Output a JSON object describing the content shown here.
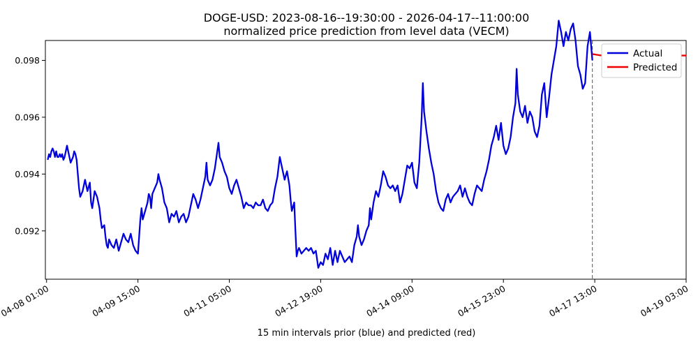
{
  "chart_data": {
    "type": "line",
    "title": "DOGE-USD: 2023-08-16--19:30:00 - 2026-04-17--11:00:00",
    "subtitle": "normalized price prediction from level data (VECM)",
    "xlabel": "15 min intervals prior (blue) and predicted (red)",
    "ylabel": "",
    "x_ticks": [
      {
        "label": "04-08 01:00",
        "t": 0
      },
      {
        "label": "04-09 15:00",
        "t": 38
      },
      {
        "label": "04-11 05:00",
        "t": 76
      },
      {
        "label": "04-12 19:00",
        "t": 114
      },
      {
        "label": "04-14 09:00",
        "t": 152
      },
      {
        "label": "04-15 23:00",
        "t": 190
      },
      {
        "label": "04-17 13:00",
        "t": 228
      },
      {
        "label": "04-19 03:00",
        "t": 266
      }
    ],
    "x_unit": "hours since 04-08 01:00",
    "xlim": [
      -0.5,
      266
    ],
    "ylim": [
      0.9903,
      0.0987
    ],
    "y_ticks": [
      0.092,
      0.094,
      0.096,
      0.098
    ],
    "forecast_start_t": 227,
    "grid": false,
    "legend_position": "top-right",
    "series": [
      {
        "name": "Actual",
        "color": "#0000dd",
        "points": [
          [
            0.5,
            0.0945
          ],
          [
            1,
            0.0947
          ],
          [
            1.5,
            0.0946
          ],
          [
            2,
            0.0948
          ],
          [
            2.5,
            0.0949
          ],
          [
            3,
            0.0948
          ],
          [
            3.5,
            0.0946
          ],
          [
            4,
            0.0948
          ],
          [
            4.5,
            0.0946
          ],
          [
            5,
            0.0946
          ],
          [
            5.5,
            0.0947
          ],
          [
            6,
            0.0946
          ],
          [
            6.5,
            0.0947
          ],
          [
            7,
            0.0945
          ],
          [
            7.5,
            0.0946
          ],
          [
            8,
            0.0948
          ],
          [
            8.5,
            0.095
          ],
          [
            9,
            0.0948
          ],
          [
            9.5,
            0.0946
          ],
          [
            10,
            0.0944
          ],
          [
            10.5,
            0.0945
          ],
          [
            11,
            0.0946
          ],
          [
            11.5,
            0.0948
          ],
          [
            12,
            0.0947
          ],
          [
            12.5,
            0.0945
          ],
          [
            13,
            0.094
          ],
          [
            13.5,
            0.0935
          ],
          [
            14,
            0.0932
          ],
          [
            15,
            0.0934
          ],
          [
            16,
            0.0938
          ],
          [
            17,
            0.0934
          ],
          [
            18,
            0.0937
          ],
          [
            18.5,
            0.093
          ],
          [
            19,
            0.0928
          ],
          [
            20,
            0.0934
          ],
          [
            21,
            0.0932
          ],
          [
            22,
            0.0928
          ],
          [
            22.5,
            0.0924
          ],
          [
            23,
            0.0921
          ],
          [
            24,
            0.0922
          ],
          [
            24.5,
            0.0918
          ],
          [
            25,
            0.0915
          ],
          [
            25.5,
            0.0914
          ],
          [
            26,
            0.0917
          ],
          [
            27,
            0.0915
          ],
          [
            28,
            0.0914
          ],
          [
            29,
            0.0917
          ],
          [
            30,
            0.0913
          ],
          [
            31,
            0.0916
          ],
          [
            32,
            0.0919
          ],
          [
            33,
            0.0917
          ],
          [
            34,
            0.0916
          ],
          [
            35,
            0.0919
          ],
          [
            36,
            0.0915
          ],
          [
            37,
            0.0913
          ],
          [
            38,
            0.0912
          ],
          [
            38.5,
            0.0918
          ],
          [
            39,
            0.0924
          ],
          [
            39.5,
            0.0928
          ],
          [
            40,
            0.0924
          ],
          [
            41,
            0.0927
          ],
          [
            42,
            0.093
          ],
          [
            42.5,
            0.0933
          ],
          [
            43,
            0.0932
          ],
          [
            43.5,
            0.0928
          ],
          [
            44,
            0.0933
          ],
          [
            45,
            0.0935
          ],
          [
            46,
            0.0937
          ],
          [
            46.5,
            0.094
          ],
          [
            47,
            0.0938
          ],
          [
            48,
            0.0935
          ],
          [
            49,
            0.093
          ],
          [
            50,
            0.0928
          ],
          [
            51,
            0.0923
          ],
          [
            52,
            0.0926
          ],
          [
            53,
            0.0925
          ],
          [
            54,
            0.0927
          ],
          [
            55,
            0.0923
          ],
          [
            56,
            0.0925
          ],
          [
            57,
            0.0926
          ],
          [
            58,
            0.0923
          ],
          [
            59,
            0.0925
          ],
          [
            60,
            0.0929
          ],
          [
            61,
            0.0933
          ],
          [
            62,
            0.0931
          ],
          [
            63,
            0.0928
          ],
          [
            64,
            0.0931
          ],
          [
            65,
            0.0935
          ],
          [
            66,
            0.0939
          ],
          [
            66.5,
            0.0944
          ],
          [
            67,
            0.0938
          ],
          [
            68,
            0.0936
          ],
          [
            69,
            0.0938
          ],
          [
            70,
            0.0942
          ],
          [
            71,
            0.0948
          ],
          [
            71.5,
            0.0951
          ],
          [
            72,
            0.0946
          ],
          [
            73,
            0.0944
          ],
          [
            74,
            0.0941
          ],
          [
            75,
            0.0939
          ],
          [
            76,
            0.0935
          ],
          [
            77,
            0.0933
          ],
          [
            78,
            0.0936
          ],
          [
            79,
            0.0938
          ],
          [
            80,
            0.0935
          ],
          [
            81,
            0.0932
          ],
          [
            82,
            0.0928
          ],
          [
            83,
            0.093
          ],
          [
            84,
            0.0929
          ],
          [
            85,
            0.0929
          ],
          [
            86,
            0.0928
          ],
          [
            87,
            0.093
          ],
          [
            88,
            0.0929
          ],
          [
            89,
            0.0929
          ],
          [
            90,
            0.0931
          ],
          [
            91,
            0.0928
          ],
          [
            92,
            0.0927
          ],
          [
            93,
            0.0929
          ],
          [
            94,
            0.093
          ],
          [
            95,
            0.0935
          ],
          [
            96,
            0.0939
          ],
          [
            97,
            0.0946
          ],
          [
            98,
            0.0942
          ],
          [
            99,
            0.0938
          ],
          [
            100,
            0.0941
          ],
          [
            101,
            0.0936
          ],
          [
            101.5,
            0.0931
          ],
          [
            102,
            0.0927
          ],
          [
            103,
            0.093
          ],
          [
            103.5,
            0.092
          ],
          [
            104,
            0.0911
          ],
          [
            104.5,
            0.0913
          ],
          [
            105,
            0.0914
          ],
          [
            106,
            0.0912
          ],
          [
            107,
            0.0913
          ],
          [
            108,
            0.0914
          ],
          [
            109,
            0.0913
          ],
          [
            110,
            0.0914
          ],
          [
            111,
            0.0912
          ],
          [
            112,
            0.0913
          ],
          [
            112.5,
            0.091
          ],
          [
            113,
            0.0907
          ],
          [
            114,
            0.0909
          ],
          [
            115,
            0.0908
          ],
          [
            116,
            0.0912
          ],
          [
            117,
            0.091
          ],
          [
            118,
            0.0914
          ],
          [
            119,
            0.0908
          ],
          [
            120,
            0.0913
          ],
          [
            121,
            0.0909
          ],
          [
            122,
            0.0913
          ],
          [
            123,
            0.0911
          ],
          [
            124,
            0.0909
          ],
          [
            125,
            0.091
          ],
          [
            126,
            0.0911
          ],
          [
            127,
            0.0909
          ],
          [
            128,
            0.0915
          ],
          [
            129,
            0.0918
          ],
          [
            129.5,
            0.0922
          ],
          [
            130,
            0.0918
          ],
          [
            131,
            0.0915
          ],
          [
            132,
            0.0917
          ],
          [
            133,
            0.092
          ],
          [
            134,
            0.0922
          ],
          [
            134.5,
            0.0928
          ],
          [
            135,
            0.0924
          ],
          [
            136,
            0.093
          ],
          [
            137,
            0.0934
          ],
          [
            138,
            0.0932
          ],
          [
            139,
            0.0936
          ],
          [
            140,
            0.0941
          ],
          [
            141,
            0.0939
          ],
          [
            142,
            0.0936
          ],
          [
            143,
            0.0935
          ],
          [
            144,
            0.0936
          ],
          [
            145,
            0.0934
          ],
          [
            146,
            0.0936
          ],
          [
            147,
            0.093
          ],
          [
            148,
            0.0933
          ],
          [
            149,
            0.0938
          ],
          [
            150,
            0.0943
          ],
          [
            151,
            0.0942
          ],
          [
            152,
            0.0944
          ],
          [
            153,
            0.0937
          ],
          [
            154,
            0.0935
          ],
          [
            155,
            0.0944
          ],
          [
            156,
            0.096
          ],
          [
            156.5,
            0.0972
          ],
          [
            157,
            0.0962
          ],
          [
            158,
            0.0955
          ],
          [
            159,
            0.0949
          ],
          [
            160,
            0.0944
          ],
          [
            161,
            0.094
          ],
          [
            162,
            0.0934
          ],
          [
            163,
            0.093
          ],
          [
            164,
            0.0928
          ],
          [
            165,
            0.0927
          ],
          [
            166,
            0.0931
          ],
          [
            167,
            0.0933
          ],
          [
            168,
            0.093
          ],
          [
            169,
            0.0932
          ],
          [
            170,
            0.0933
          ],
          [
            171,
            0.0934
          ],
          [
            172,
            0.0936
          ],
          [
            173,
            0.0932
          ],
          [
            174,
            0.0935
          ],
          [
            175,
            0.0932
          ],
          [
            176,
            0.093
          ],
          [
            177,
            0.0929
          ],
          [
            178,
            0.0933
          ],
          [
            179,
            0.0936
          ],
          [
            180,
            0.0935
          ],
          [
            181,
            0.0934
          ],
          [
            182,
            0.0938
          ],
          [
            183,
            0.0941
          ],
          [
            184,
            0.0945
          ],
          [
            185,
            0.095
          ],
          [
            186,
            0.0953
          ],
          [
            187,
            0.0957
          ],
          [
            188,
            0.0952
          ],
          [
            189,
            0.0958
          ],
          [
            190,
            0.095
          ],
          [
            191,
            0.0947
          ],
          [
            192,
            0.0949
          ],
          [
            193,
            0.0953
          ],
          [
            194,
            0.096
          ],
          [
            195,
            0.0965
          ],
          [
            195.5,
            0.0977
          ],
          [
            196,
            0.0968
          ],
          [
            197,
            0.0962
          ],
          [
            198,
            0.096
          ],
          [
            199,
            0.0964
          ],
          [
            200,
            0.0958
          ],
          [
            201,
            0.0962
          ],
          [
            202,
            0.096
          ],
          [
            203,
            0.0955
          ],
          [
            204,
            0.0953
          ],
          [
            205,
            0.0957
          ],
          [
            206,
            0.0968
          ],
          [
            207,
            0.0972
          ],
          [
            208,
            0.096
          ],
          [
            209,
            0.0967
          ],
          [
            210,
            0.0975
          ],
          [
            211,
            0.098
          ],
          [
            212,
            0.0985
          ],
          [
            213,
            0.0994
          ],
          [
            214,
            0.099
          ],
          [
            215,
            0.0985
          ],
          [
            216,
            0.099
          ],
          [
            217,
            0.0987
          ],
          [
            218,
            0.0991
          ],
          [
            219,
            0.0993
          ],
          [
            220,
            0.0987
          ],
          [
            221,
            0.0978
          ],
          [
            222,
            0.0975
          ],
          [
            223,
            0.097
          ],
          [
            224,
            0.0972
          ],
          [
            225,
            0.0985
          ],
          [
            226,
            0.099
          ],
          [
            227,
            0.098
          ]
        ]
      },
      {
        "name": "Predicted",
        "color": "#ee0000",
        "points": [
          [
            227,
            0.09822
          ],
          [
            228,
            0.09821
          ],
          [
            230,
            0.09818
          ],
          [
            235,
            0.09817
          ],
          [
            240,
            0.09817
          ],
          [
            250,
            0.09817
          ],
          [
            260,
            0.09817
          ],
          [
            266,
            0.09817
          ]
        ]
      }
    ]
  }
}
